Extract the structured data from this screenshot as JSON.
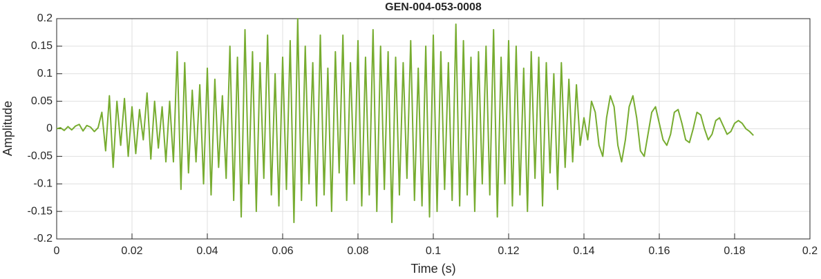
{
  "chart_data": {
    "type": "line",
    "title": "GEN-004-053-0008",
    "xlabel": "Time (s)",
    "ylabel": "Amplitude",
    "color": "#77ac30",
    "grid": true,
    "xlim": [
      0,
      0.2
    ],
    "xticks": [
      0,
      0.02,
      0.04,
      0.06,
      0.08,
      0.1,
      0.12,
      0.14,
      0.16,
      0.18,
      0.2
    ],
    "ylim": [
      -0.2,
      0.2
    ],
    "yticks": [
      -0.2,
      -0.15,
      -0.1,
      -0.05,
      0,
      0.05,
      0.1,
      0.15,
      0.2
    ],
    "x": [
      0,
      0.001,
      0.002,
      0.003,
      0.004,
      0.005,
      0.006,
      0.007,
      0.008,
      0.009,
      0.01,
      0.011,
      0.012,
      0.013,
      0.014,
      0.015,
      0.016,
      0.017,
      0.018,
      0.019,
      0.02,
      0.021,
      0.022,
      0.023,
      0.024,
      0.025,
      0.026,
      0.027,
      0.028,
      0.029,
      0.03,
      0.031,
      0.032,
      0.033,
      0.034,
      0.035,
      0.036,
      0.037,
      0.038,
      0.039,
      0.04,
      0.041,
      0.042,
      0.043,
      0.044,
      0.045,
      0.046,
      0.047,
      0.048,
      0.049,
      0.05,
      0.051,
      0.052,
      0.053,
      0.054,
      0.055,
      0.056,
      0.057,
      0.058,
      0.059,
      0.06,
      0.061,
      0.062,
      0.063,
      0.064,
      0.065,
      0.066,
      0.067,
      0.068,
      0.069,
      0.07,
      0.071,
      0.072,
      0.073,
      0.074,
      0.075,
      0.076,
      0.077,
      0.078,
      0.079,
      0.08,
      0.081,
      0.082,
      0.083,
      0.084,
      0.085,
      0.086,
      0.087,
      0.088,
      0.089,
      0.09,
      0.091,
      0.092,
      0.093,
      0.094,
      0.095,
      0.096,
      0.097,
      0.098,
      0.099,
      0.1,
      0.101,
      0.102,
      0.103,
      0.104,
      0.105,
      0.106,
      0.107,
      0.108,
      0.109,
      0.11,
      0.111,
      0.112,
      0.113,
      0.114,
      0.115,
      0.116,
      0.117,
      0.118,
      0.119,
      0.12,
      0.121,
      0.122,
      0.123,
      0.124,
      0.125,
      0.126,
      0.127,
      0.128,
      0.129,
      0.13,
      0.131,
      0.132,
      0.133,
      0.134,
      0.135,
      0.136,
      0.137,
      0.138,
      0.139,
      0.14,
      0.141,
      0.142,
      0.143,
      0.144,
      0.145,
      0.146,
      0.147,
      0.148,
      0.149,
      0.15,
      0.151,
      0.152,
      0.153,
      0.154,
      0.155,
      0.156,
      0.157,
      0.158,
      0.159,
      0.16,
      0.161,
      0.162,
      0.163,
      0.164,
      0.165,
      0.166,
      0.167,
      0.168,
      0.169,
      0.17,
      0.171,
      0.172,
      0.173,
      0.174,
      0.175,
      0.176,
      0.177,
      0.178,
      0.179,
      0.18,
      0.181,
      0.182,
      0.183,
      0.184,
      0.185
    ],
    "values": [
      0,
      0.002,
      -0.003,
      0.004,
      -0.002,
      0.005,
      0.008,
      -0.004,
      0.006,
      0.003,
      -0.005,
      0.002,
      0.03,
      -0.04,
      0.06,
      -0.07,
      0.05,
      -0.03,
      0.055,
      -0.05,
      0.04,
      -0.045,
      0.035,
      -0.02,
      0.065,
      -0.055,
      0.05,
      -0.035,
      0.04,
      -0.06,
      0.05,
      -0.06,
      0.14,
      -0.11,
      0.12,
      -0.08,
      0.07,
      -0.06,
      0.08,
      -0.1,
      0.11,
      -0.12,
      0.09,
      -0.07,
      0.06,
      -0.09,
      0.15,
      -0.13,
      0.13,
      -0.16,
      0.18,
      -0.1,
      0.14,
      -0.15,
      0.12,
      -0.09,
      0.17,
      -0.12,
      0.1,
      -0.14,
      0.13,
      -0.11,
      0.16,
      -0.17,
      0.2,
      -0.13,
      0.15,
      -0.1,
      0.12,
      -0.14,
      0.17,
      -0.12,
      0.11,
      -0.15,
      0.14,
      -0.08,
      0.17,
      -0.13,
      0.12,
      -0.1,
      0.16,
      -0.14,
      0.13,
      -0.12,
      0.18,
      -0.15,
      0.15,
      -0.11,
      0.14,
      -0.17,
      0.13,
      -0.12,
      0.12,
      -0.09,
      0.16,
      -0.13,
      0.11,
      -0.14,
      0.15,
      -0.16,
      0.17,
      -0.15,
      0.14,
      -0.11,
      0.12,
      -0.13,
      0.19,
      -0.14,
      0.16,
      -0.12,
      0.13,
      -0.15,
      0.14,
      -0.1,
      0.15,
      -0.12,
      0.18,
      -0.16,
      0.13,
      -0.1,
      0.16,
      -0.14,
      0.15,
      -0.12,
      0.11,
      -0.15,
      0.14,
      -0.09,
      0.13,
      -0.14,
      0.12,
      -0.08,
      0.1,
      -0.11,
      0.12,
      -0.07,
      0.09,
      -0.06,
      0.08,
      -0.03,
      0.02,
      -0.02,
      0.05,
      0.03,
      -0.03,
      -0.05,
      0.02,
      0.06,
      0.04,
      -0.03,
      -0.06,
      -0.02,
      0.04,
      0.06,
      0.02,
      -0.04,
      -0.05,
      -0.01,
      0.03,
      0.04,
      0.01,
      -0.02,
      -0.03,
      -0.01,
      0.03,
      0.035,
      0.01,
      -0.02,
      -0.025,
      0,
      0.03,
      0.025,
      0,
      -0.02,
      -0.01,
      0.015,
      0.02,
      0.005,
      -0.01,
      -0.005,
      0.01,
      0.015,
      0.01,
      0,
      -0.005,
      -0.012
    ]
  }
}
